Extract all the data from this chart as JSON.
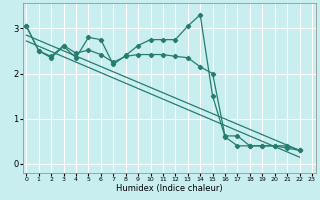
{
  "xlabel": "Humidex (Indice chaleur)",
  "bg_color": "#c8eef0",
  "grid_color": "#ffffff",
  "line_color": "#267d6e",
  "series": [
    {
      "x": [
        0,
        1,
        2,
        3,
        4,
        5,
        6,
        7,
        8,
        9,
        10,
        11,
        12,
        13,
        14,
        15,
        16,
        17,
        18,
        19,
        20,
        21,
        22
      ],
      "y": [
        3.05,
        2.5,
        2.35,
        2.6,
        2.35,
        2.8,
        2.75,
        2.2,
        2.4,
        2.62,
        2.75,
        2.75,
        2.75,
        3.05,
        3.3,
        1.5,
        0.6,
        0.4,
        0.4,
        0.4,
        0.4,
        0.4,
        0.3
      ],
      "has_markers": true
    },
    {
      "x": [
        0,
        1,
        2,
        3,
        4,
        5,
        6,
        7,
        8,
        9,
        10,
        11,
        12,
        13,
        14,
        15,
        16,
        17,
        18,
        19,
        20,
        21,
        22
      ],
      "y": [
        3.05,
        2.5,
        2.38,
        2.62,
        2.45,
        2.52,
        2.42,
        2.25,
        2.38,
        2.42,
        2.42,
        2.42,
        2.38,
        2.35,
        2.15,
        2.0,
        0.62,
        0.62,
        0.4,
        0.4,
        0.4,
        0.35,
        0.3
      ],
      "has_markers": true
    },
    {
      "x": [
        0,
        22
      ],
      "y": [
        2.85,
        0.3
      ],
      "has_markers": false
    },
    {
      "x": [
        0,
        22
      ],
      "y": [
        2.72,
        0.15
      ],
      "has_markers": false
    }
  ],
  "xlim": [
    -0.3,
    23.3
  ],
  "ylim": [
    -0.2,
    3.55
  ],
  "yticks": [
    0,
    1,
    2,
    3
  ],
  "xticks": [
    0,
    1,
    2,
    3,
    4,
    5,
    6,
    7,
    8,
    9,
    10,
    11,
    12,
    13,
    14,
    15,
    16,
    17,
    18,
    19,
    20,
    21,
    22,
    23
  ]
}
